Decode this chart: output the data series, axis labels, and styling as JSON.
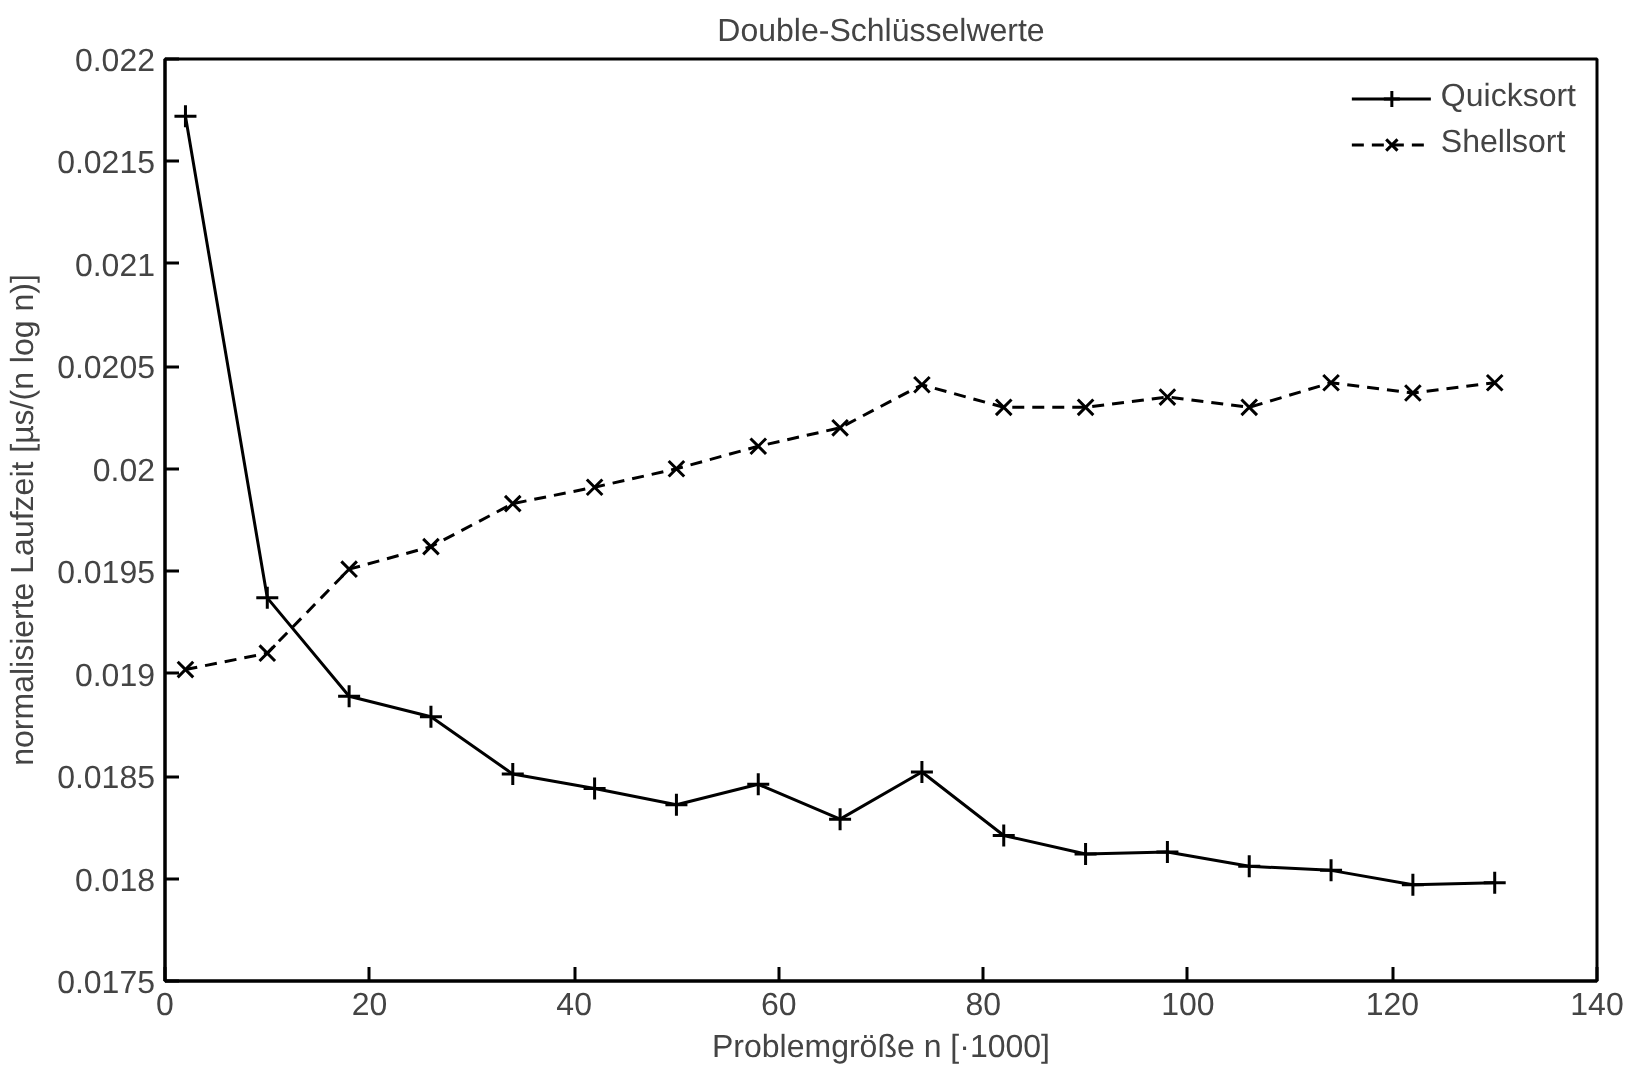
{
  "chart_data": {
    "type": "line",
    "title": "Double-Schlüsselwerte",
    "xlabel": "Problemgröße n [·1000]",
    "ylabel": "normalisierte Laufzeit [µs/(n log n)]",
    "x": [
      2,
      10,
      18,
      26,
      34,
      42,
      50,
      58,
      66,
      74,
      82,
      90,
      98,
      106,
      114,
      122,
      130
    ],
    "xlim": [
      0,
      140
    ],
    "xticks": [
      0,
      20,
      40,
      60,
      80,
      100,
      120,
      140
    ],
    "ylim": [
      0.0175,
      0.022
    ],
    "yticks": [
      0.0175,
      0.018,
      0.0185,
      0.019,
      0.0195,
      0.02,
      0.0205,
      0.021,
      0.0215,
      0.022
    ],
    "grid": false,
    "legend": "top right",
    "series": [
      {
        "name": "Quicksort",
        "color": "#000000",
        "marker": "cross",
        "line_style": "solid",
        "values": [
          0.02172,
          0.01937,
          0.01889,
          0.01879,
          0.01851,
          0.01844,
          0.01836,
          0.01846,
          0.01829,
          0.01852,
          0.01821,
          0.01812,
          0.01813,
          0.01806,
          0.01804,
          0.01797,
          0.01798
        ]
      },
      {
        "name": "Shellsort",
        "color": "#000000",
        "marker": "x",
        "line_style": "dashed",
        "values": [
          0.01902,
          0.0191,
          0.01951,
          0.01962,
          0.01983,
          0.01991,
          0.02,
          0.02011,
          0.0202,
          0.02041,
          0.0203,
          0.0203,
          0.02035,
          0.0203,
          0.02042,
          0.02037,
          0.02042
        ]
      }
    ]
  }
}
